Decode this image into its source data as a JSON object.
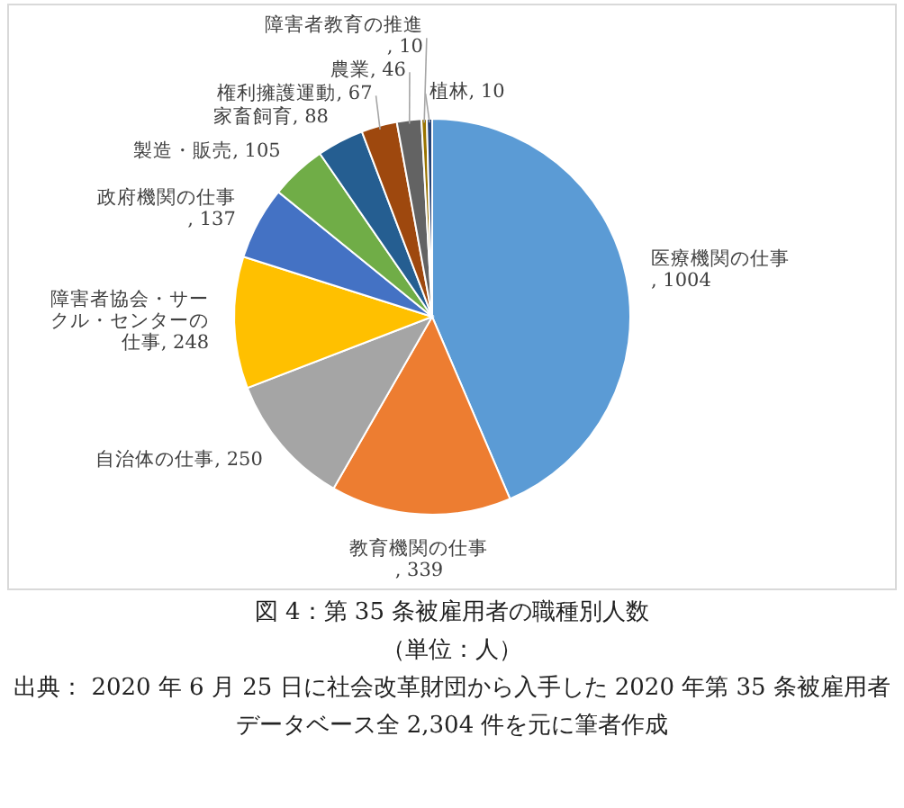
{
  "chart_data": {
    "type": "pie",
    "title": "図 4：第 35 条被雇用者の職種別人数",
    "subtitle": "（単位：人）",
    "annotations": [
      "出典： 2020 年 6 月 25 日に社会改革財団から入手した 2020 年第 35 条被雇用者データベース全 2,304 件を元に筆者作成"
    ],
    "categories": [
      "医療機関の仕事",
      "教育機関の仕事",
      "自治体の仕事",
      "障害者協会・サークル・センターの仕事",
      "政府機関の仕事",
      "製造・販売",
      "家畜飼育",
      "権利擁護運動",
      "農業",
      "障害者教育の推進",
      "植林"
    ],
    "values": [
      1004,
      339,
      250,
      248,
      137,
      105,
      88,
      67,
      46,
      10,
      10
    ],
    "colors": [
      "#5b9bd5",
      "#ed7d31",
      "#a5a5a5",
      "#ffc000",
      "#4472c4",
      "#70ad47",
      "#255e91",
      "#9e480e",
      "#636363",
      "#997300",
      "#264478"
    ],
    "value_labels": [
      ", 1004",
      ", 339",
      ", 250",
      ", 248",
      ", 137",
      ", 105",
      ", 88",
      ", 67",
      ", 46",
      ", 10",
      ", 10"
    ]
  }
}
